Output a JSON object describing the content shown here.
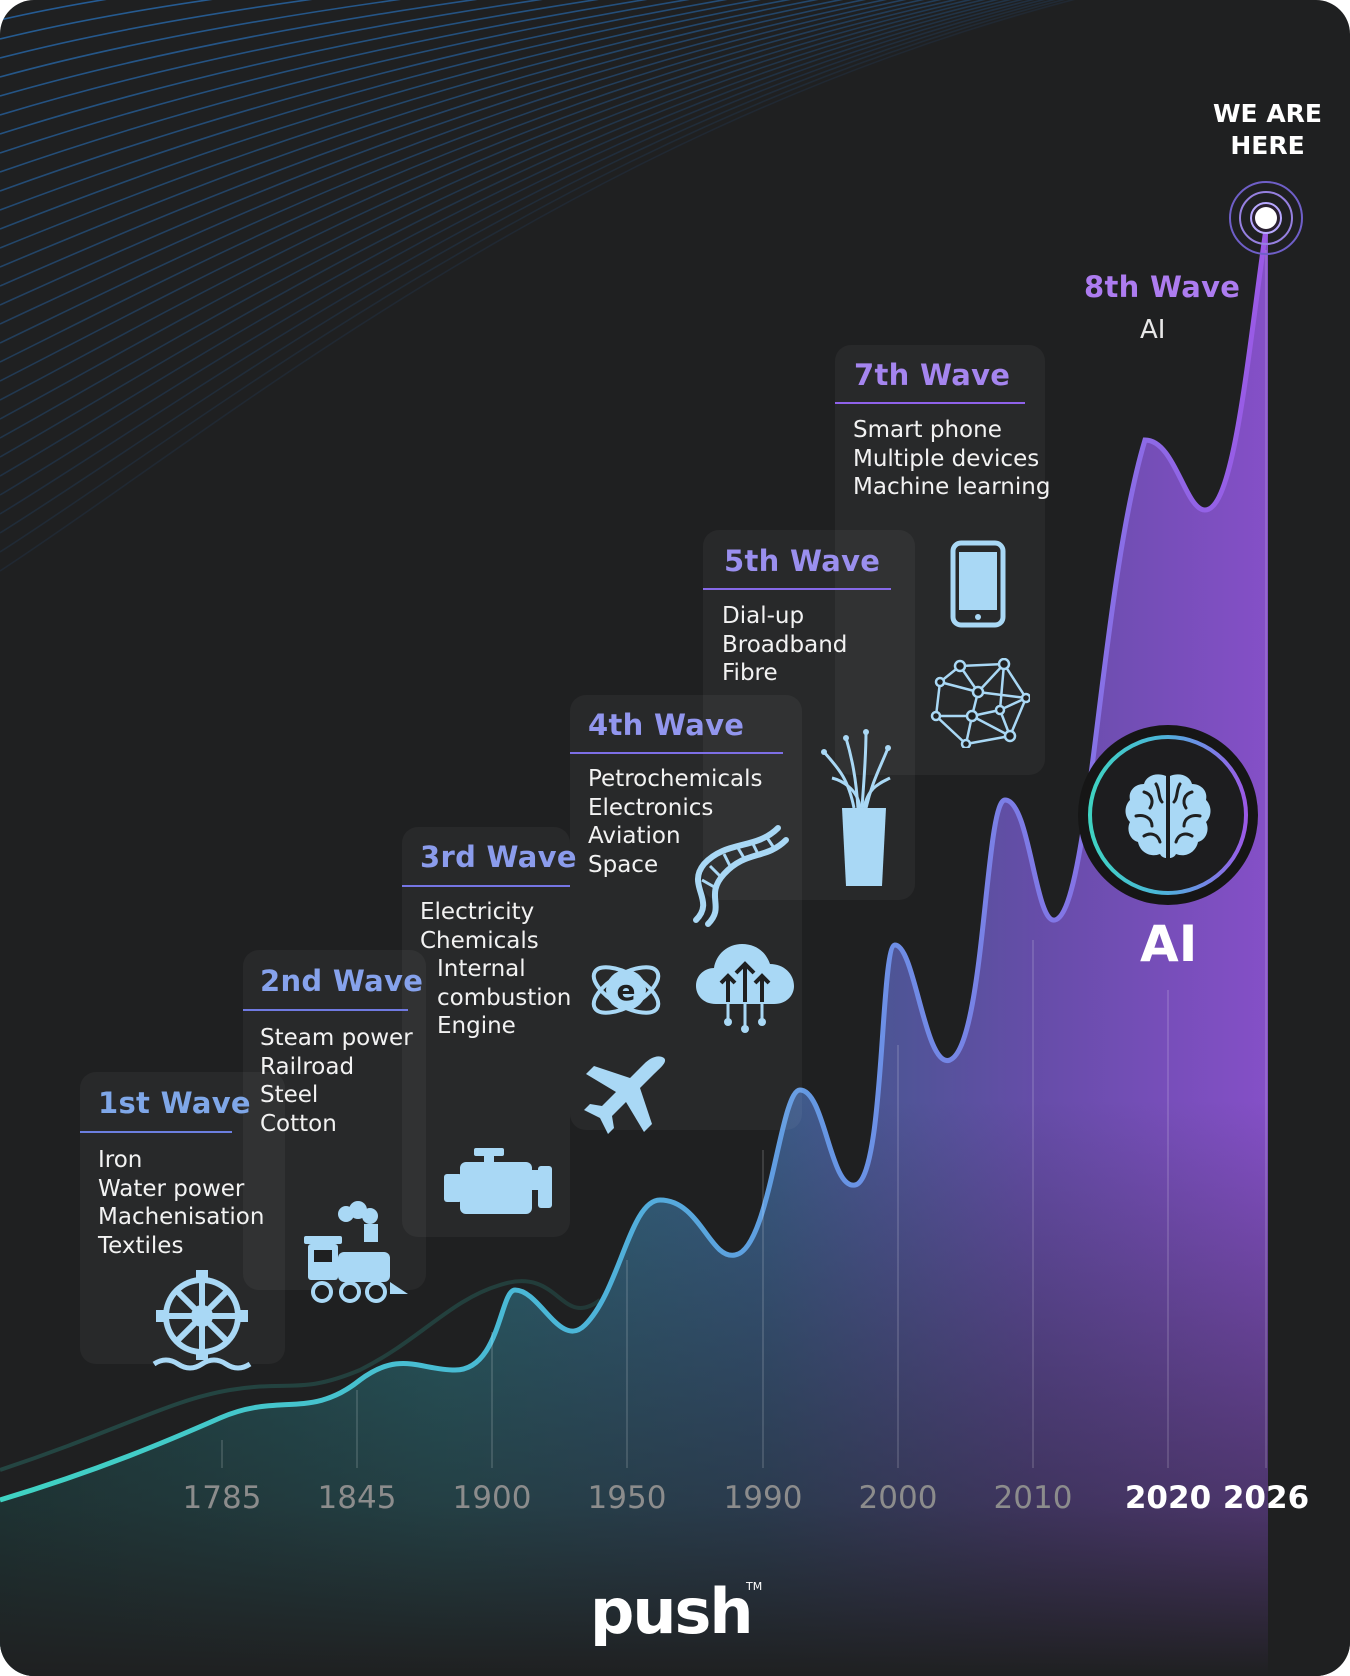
{
  "marker": {
    "label_line1": "WE ARE",
    "label_line2": "HERE"
  },
  "waves": [
    {
      "title": "1st Wave",
      "items": [
        "Iron",
        "Water power",
        "Machenisation",
        "Textiles"
      ],
      "color": "#7fa7e8"
    },
    {
      "title": "2nd Wave",
      "items": [
        "Steam power",
        "Railroad",
        "Steel",
        "Cotton"
      ],
      "color": "#86a2ec"
    },
    {
      "title": "3rd Wave",
      "items": [
        "Electricity",
        "Chemicals",
        "Internal",
        "combustion",
        "Engine"
      ],
      "color": "#8b9cec"
    },
    {
      "title": "4th Wave",
      "items": [
        "Petrochemicals",
        "Electronics",
        "Aviation",
        "Space"
      ],
      "color": "#9296ee"
    },
    {
      "title": "5th Wave",
      "items": [
        "Dial-up",
        "Broadband",
        "Fibre"
      ],
      "color": "#9a8fee"
    },
    {
      "title": "7th Wave",
      "items": [
        "Smart phone",
        "Multiple devices",
        "Machine learning"
      ],
      "color": "#a585ef"
    },
    {
      "title": "8th Wave",
      "items": [
        "AI"
      ],
      "color": "#ad7cf0"
    }
  ],
  "ai_badge": {
    "label": "AI"
  },
  "years": [
    "1785",
    "1845",
    "1900",
    "1950",
    "1990",
    "2000",
    "2010",
    "2020",
    "2026"
  ],
  "icons": [
    "water-wheel-icon",
    "locomotive-icon",
    "engine-icon",
    "airplane-icon",
    "atom-e-icon",
    "dna-icon",
    "cloud-upload-icon",
    "fiber-optic-icon",
    "smartphone-icon",
    "network-icon",
    "brain-icon"
  ],
  "colors": {
    "background": "#1f2021",
    "icon": "#a9d8f5",
    "curve_start": "#3fd3c2",
    "curve_end": "#9b59e6"
  },
  "brand": {
    "logo": "push",
    "tm": "TM"
  }
}
